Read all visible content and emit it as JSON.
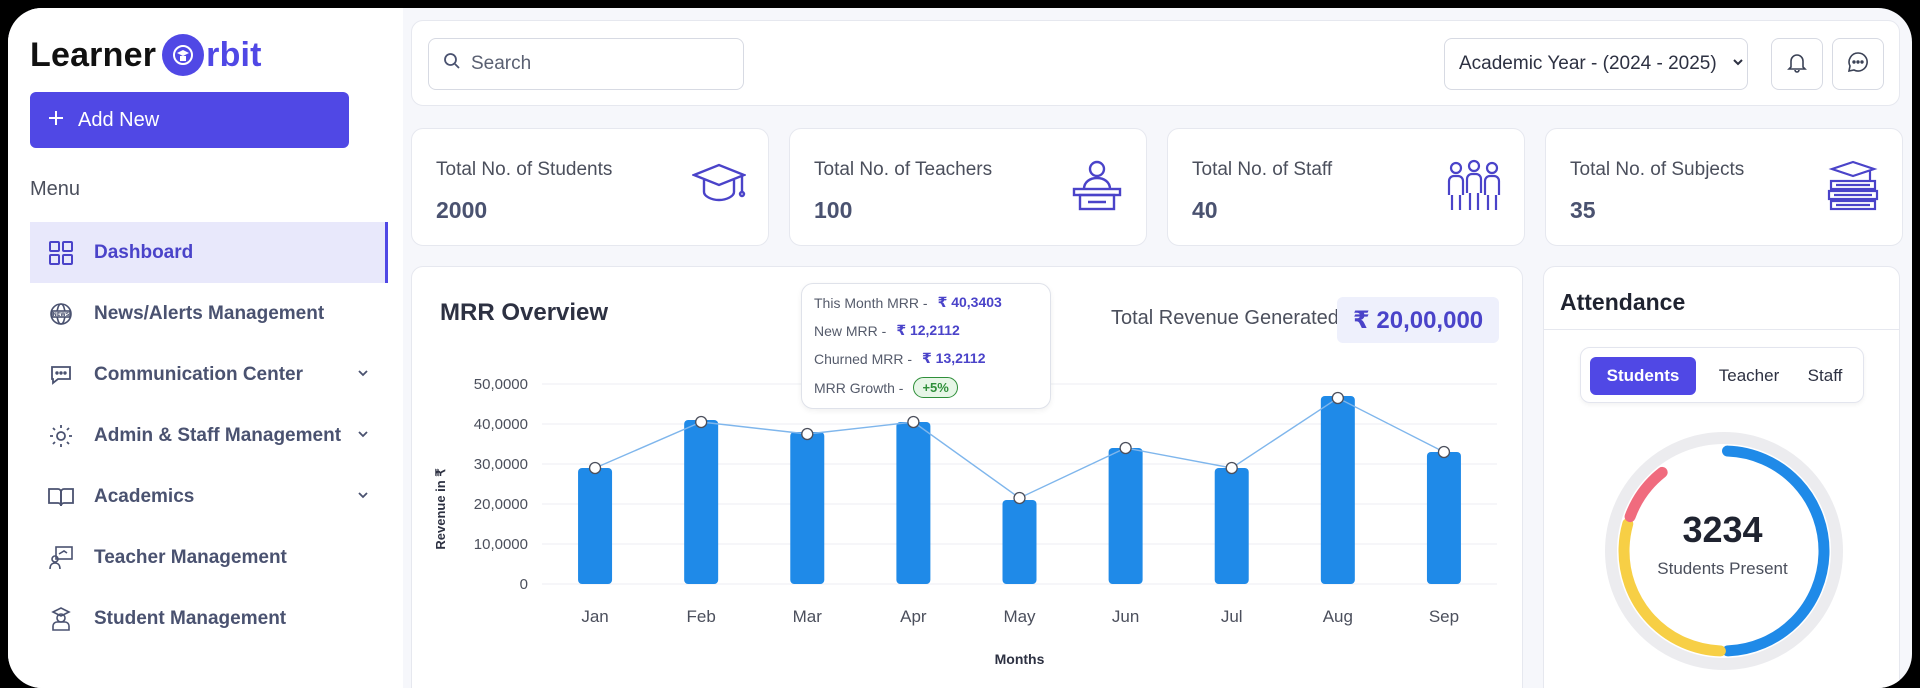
{
  "logo": {
    "part1": "Learner",
    "part2": "rbit"
  },
  "sidebar": {
    "add_new_label": "Add New",
    "menu_label": "Menu",
    "items": [
      {
        "label": "Dashboard",
        "icon": "grid-icon",
        "active": true,
        "has_submenu": false
      },
      {
        "label": "News/Alerts Management",
        "icon": "news-globe-icon",
        "active": false,
        "has_submenu": false
      },
      {
        "label": "Communication Center",
        "icon": "chat-icon",
        "active": false,
        "has_submenu": true
      },
      {
        "label": "Admin & Staff Management",
        "icon": "users-gear-icon",
        "active": false,
        "has_submenu": true
      },
      {
        "label": "Academics",
        "icon": "book-open-icon",
        "active": false,
        "has_submenu": true
      },
      {
        "label": "Teacher Management",
        "icon": "teacher-board-icon",
        "active": false,
        "has_submenu": false
      },
      {
        "label": "Student Management",
        "icon": "student-icon",
        "active": false,
        "has_submenu": false
      }
    ]
  },
  "topbar": {
    "search_placeholder": "Search",
    "academic_year": "Academic Year - (2024 - 2025)"
  },
  "stats": [
    {
      "label": "Total No. of Students",
      "value": "2000",
      "icon": "graduation-cap-icon"
    },
    {
      "label": "Total No. of Teachers",
      "value": "100",
      "icon": "teacher-desk-icon"
    },
    {
      "label": "Total No. of Staff",
      "value": "40",
      "icon": "staff-group-icon"
    },
    {
      "label": "Total No. of Subjects",
      "value": "35",
      "icon": "books-stack-icon"
    }
  ],
  "mrr": {
    "title": "MRR Overview",
    "revenue_label": "Total Revenue Generated -",
    "revenue_value": "₹ 20,00,000",
    "tooltip": {
      "this_month_label": "This Month MRR -",
      "this_month_value": "₹ 40,3403",
      "new_label": "New MRR -",
      "new_value": "₹ 12,2112",
      "churned_label": "Churned MRR -",
      "churned_value": "₹ 13,2112",
      "growth_label": "MRR Growth -",
      "growth_value": "+5%"
    }
  },
  "chart_data": {
    "type": "bar",
    "categories": [
      "Jan",
      "Feb",
      "Mar",
      "Apr",
      "May",
      "Jun",
      "Jul",
      "Aug",
      "Sep"
    ],
    "values": [
      29000,
      41000,
      38000,
      40500,
      21000,
      34000,
      29000,
      47000,
      33000
    ],
    "line_values": [
      29000,
      40500,
      37500,
      40500,
      21500,
      34000,
      29000,
      46500,
      33000
    ],
    "y_ticks": [
      "0",
      "10,0000",
      "20,0000",
      "30,0000",
      "40,0000",
      "50,0000"
    ],
    "ylim": [
      0,
      50000
    ],
    "xlabel": "Months",
    "ylabel": "Revenue in ₹",
    "bar_color": "#1f8ae8",
    "line_color": "#7fb6ec",
    "grid": true
  },
  "attendance": {
    "title": "Attendance",
    "tabs": [
      "Students",
      "Teacher",
      "Staff"
    ],
    "active_tab": "Students",
    "count": "3234",
    "count_label": "Students Present",
    "segments": [
      {
        "color": "#1f8ae8",
        "fraction": 0.5
      },
      {
        "color": "#f7cf45",
        "fraction": 0.3
      },
      {
        "color": "#f06b7e",
        "fraction": 0.1
      }
    ]
  },
  "colors": {
    "accent": "#5048e5",
    "bar": "#1f8ae8"
  }
}
